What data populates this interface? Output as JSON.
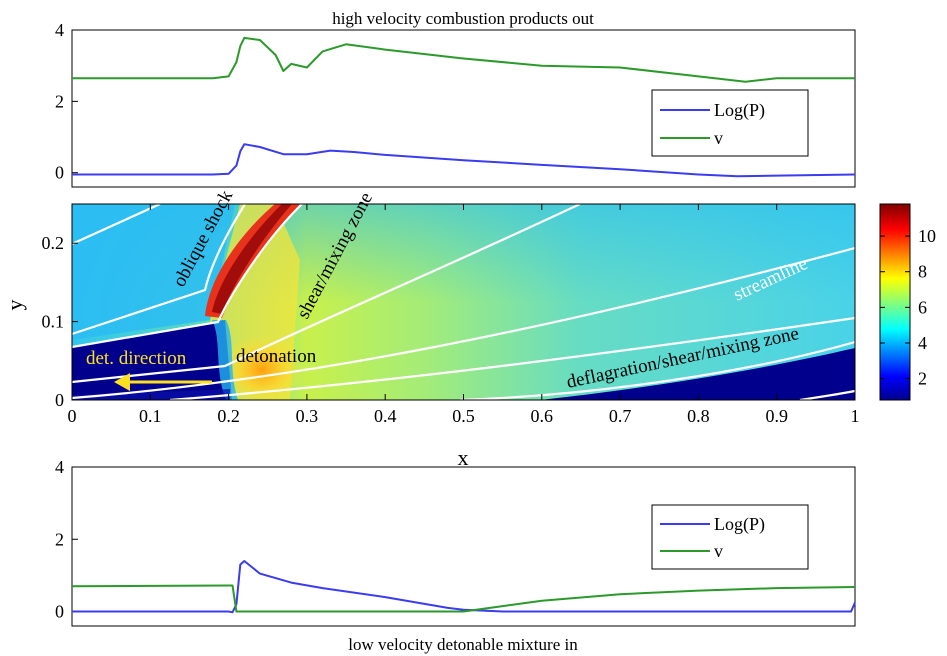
{
  "chart_data": [
    {
      "type": "line",
      "title": "high velocity combustion products out",
      "xlim": [
        0,
        1
      ],
      "ylim": [
        -0.4,
        4
      ],
      "yticks": [
        0,
        2,
        4
      ],
      "legend": {
        "placement": "right",
        "entries": [
          "Log(P)",
          "v"
        ]
      },
      "series": [
        {
          "name": "Log(P)",
          "color": "#3b3bf0",
          "x": [
            0,
            0.18,
            0.2,
            0.21,
            0.215,
            0.22,
            0.24,
            0.27,
            0.3,
            0.33,
            0.36,
            0.4,
            0.5,
            0.6,
            0.7,
            0.8,
            0.85,
            0.9,
            1.0
          ],
          "y": [
            -0.05,
            -0.05,
            -0.03,
            0.2,
            0.6,
            0.8,
            0.72,
            0.52,
            0.52,
            0.62,
            0.58,
            0.5,
            0.35,
            0.22,
            0.1,
            -0.05,
            -0.1,
            -0.08,
            -0.05
          ]
        },
        {
          "name": "v",
          "color": "#2b9a2b",
          "x": [
            0,
            0.18,
            0.2,
            0.21,
            0.215,
            0.22,
            0.24,
            0.26,
            0.27,
            0.28,
            0.3,
            0.32,
            0.35,
            0.4,
            0.5,
            0.6,
            0.7,
            0.8,
            0.86,
            0.9,
            1.0
          ],
          "y": [
            2.65,
            2.65,
            2.7,
            3.1,
            3.55,
            3.78,
            3.72,
            3.3,
            2.85,
            3.05,
            2.95,
            3.4,
            3.6,
            3.45,
            3.2,
            3.0,
            2.95,
            2.7,
            2.55,
            2.65,
            2.65
          ]
        }
      ]
    },
    {
      "type": "heatmap",
      "xlabel": "x",
      "ylabel": "y",
      "xlim": [
        0,
        1
      ],
      "ylim": [
        0,
        0.25
      ],
      "xticks": [
        "0",
        "0.1",
        "0.2",
        "0.3",
        "0.4",
        "0.5",
        "0.6",
        "0.7",
        "0.8",
        "0.9",
        "1"
      ],
      "yticks": [
        "0",
        "0.1",
        "0.2"
      ],
      "colorbar": {
        "min": 0.8,
        "max": 11.8,
        "ticks": [
          "2",
          "4",
          "6",
          "8",
          "10"
        ]
      },
      "annotations": [
        "oblique shock",
        "shear/mixing zone",
        "streamline",
        "det. direction",
        "detonation",
        "deflagration/shear/mixing zone"
      ]
    },
    {
      "type": "line",
      "title": "low velocity detonable mixture in",
      "xlim": [
        0,
        1
      ],
      "ylim": [
        -0.4,
        4
      ],
      "yticks": [
        0,
        2,
        4
      ],
      "legend": {
        "placement": "right",
        "entries": [
          "Log(P)",
          "v"
        ]
      },
      "series": [
        {
          "name": "Log(P)",
          "color": "#3b3bf0",
          "x": [
            0,
            0.2,
            0.205,
            0.21,
            0.215,
            0.22,
            0.24,
            0.28,
            0.32,
            0.4,
            0.48,
            0.5,
            0.55,
            0.7,
            0.9,
            0.995,
            1.0
          ],
          "y": [
            0,
            0,
            -0.02,
            0.2,
            1.3,
            1.4,
            1.05,
            0.8,
            0.65,
            0.4,
            0.1,
            0.05,
            0.0,
            0.0,
            0.0,
            0.0,
            0.25
          ]
        },
        {
          "name": "v",
          "color": "#2b9a2b",
          "x": [
            0,
            0.2,
            0.205,
            0.21,
            0.3,
            0.4,
            0.5,
            0.55,
            0.6,
            0.7,
            0.8,
            0.9,
            1.0
          ],
          "y": [
            0.7,
            0.72,
            0.72,
            0.0,
            0.0,
            0.0,
            0.0,
            0.15,
            0.3,
            0.48,
            0.58,
            0.65,
            0.68
          ]
        }
      ]
    }
  ]
}
